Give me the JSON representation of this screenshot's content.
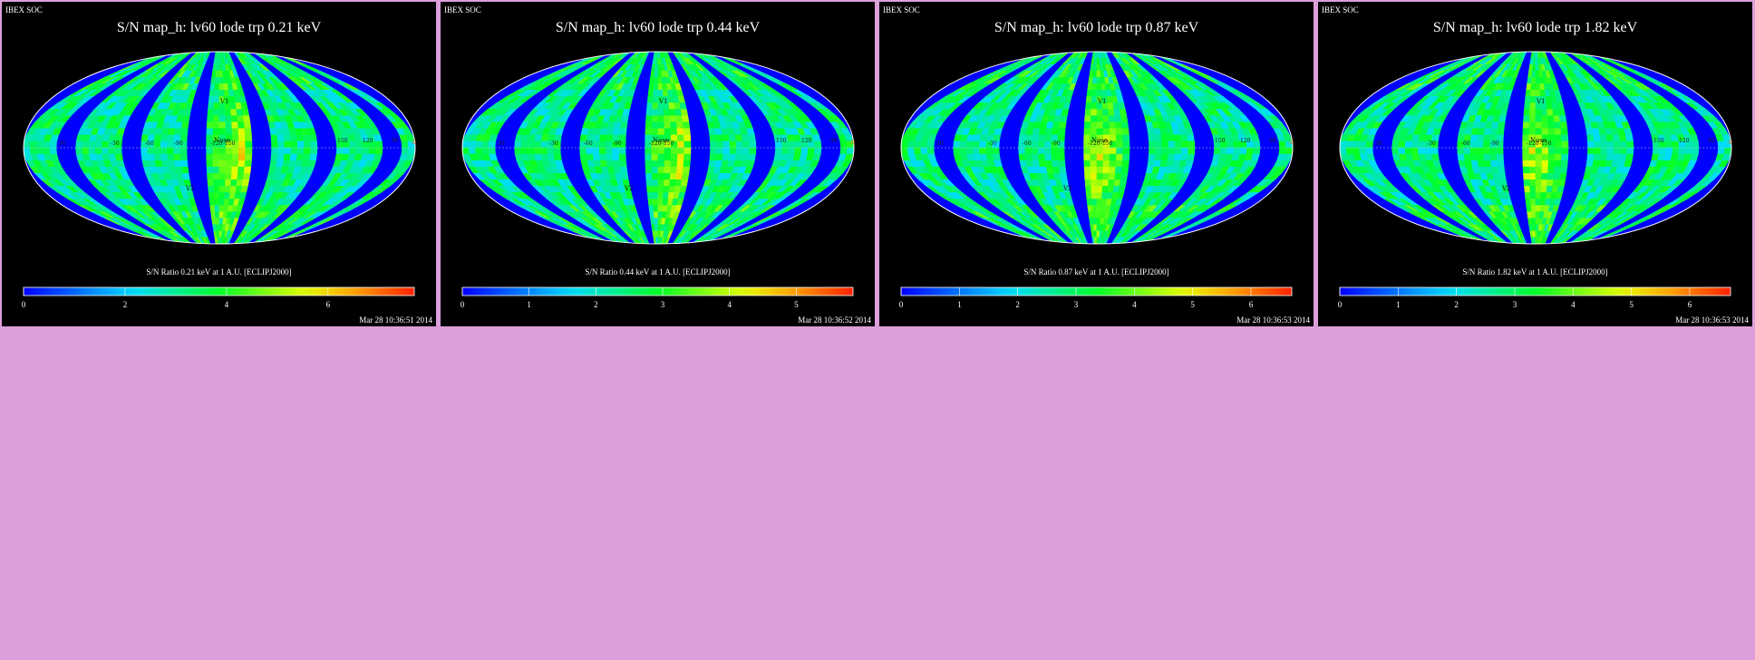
{
  "colors": {
    "page_background": "#dc9fdc",
    "panel_background": "#000000",
    "map_low": "#0000ff",
    "map_high": "#ff2000"
  },
  "panels": [
    {
      "source": "IBEX SOC",
      "title": "S/N  map_h: lv60 lode trp 0.21 keV",
      "colorbar_title": "S/N Ratio 0.21 keV at 1 A.U. [ECLIPJ2000]",
      "colorbar_ticks": [
        "0",
        "2",
        "4",
        "6"
      ],
      "colorbar_max": 7.7,
      "timestamp": "Mar 28 10:36:51 2014",
      "hotspot_lon": -20
    },
    {
      "source": "IBEX SOC",
      "title": "S/N  map_h: lv60 lode trp 0.44 keV",
      "colorbar_title": "S/N Ratio 0.44 keV at 1 A.U. [ECLIPJ2000]",
      "colorbar_ticks": [
        "0",
        "1",
        "2",
        "3",
        "4",
        "5"
      ],
      "colorbar_max": 5.85,
      "timestamp": "Mar 28 10:36:52 2014",
      "hotspot_lon": -20
    },
    {
      "source": "IBEX SOC",
      "title": "S/N  map_h: lv60 lode trp 0.87 keV",
      "colorbar_title": "S/N Ratio 0.87 keV at 1 A.U. [ECLIPJ2000]",
      "colorbar_ticks": [
        "0",
        "1",
        "2",
        "3",
        "4",
        "5",
        "6"
      ],
      "colorbar_max": 6.7,
      "timestamp": "Mar 28 10:36:53 2014",
      "hotspot_lon": 0
    },
    {
      "source": "IBEX SOC",
      "title": "S/N  map_h: lv60 lode trp 1.82 keV",
      "colorbar_title": "S/N Ratio 1.82 keV at 1 A.U. [ECLIPJ2000]",
      "colorbar_ticks": [
        "0",
        "1",
        "2",
        "3",
        "4",
        "5",
        "6"
      ],
      "colorbar_max": 6.7,
      "timestamp": "Mar 28 10:36:53 2014",
      "hotspot_lon": 0
    }
  ],
  "map_labels": {
    "lon_left": [
      "30",
      "-30",
      "-60",
      "-90",
      "-120",
      "-150"
    ],
    "lon_right": [
      "150",
      "120",
      "90"
    ],
    "end_label": "-0",
    "nose": "Nose",
    "v1": "V1",
    "v2": "V2"
  }
}
